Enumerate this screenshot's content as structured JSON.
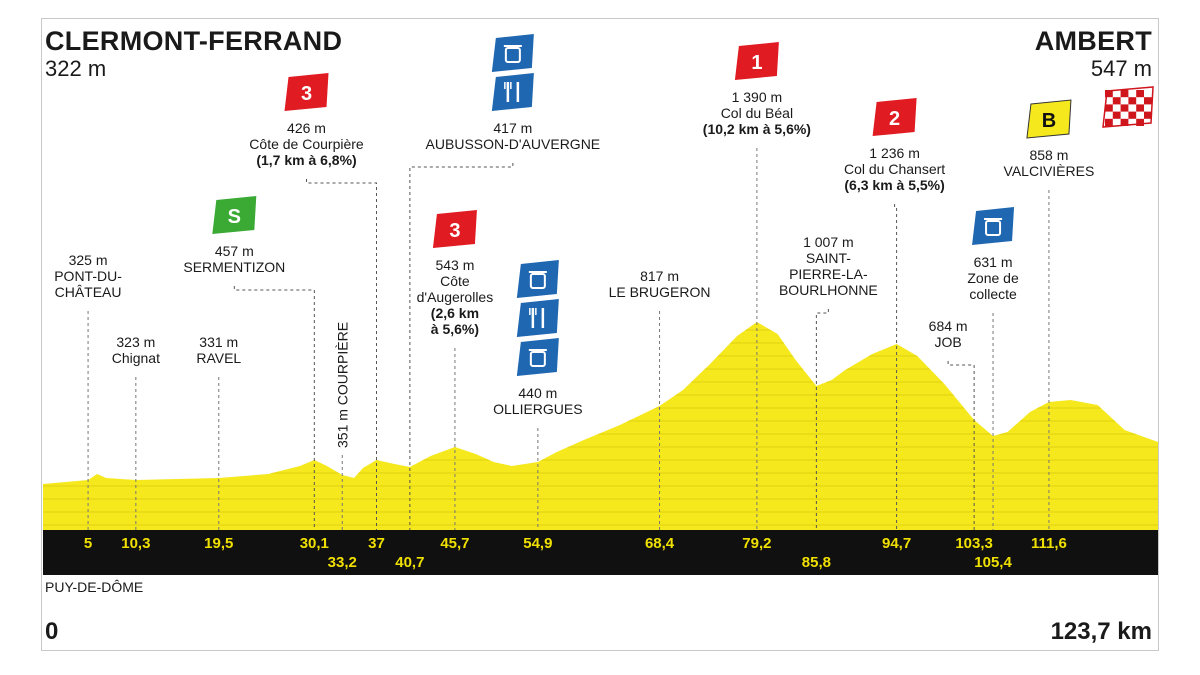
{
  "start": {
    "name": "CLERMONT-FERRAND",
    "altitude": "322 m"
  },
  "finish": {
    "name": "AMBERT",
    "altitude": "547 m"
  },
  "department": "PUY-DE-DÔME",
  "distance_start": "0",
  "distance_total": "123,7 km",
  "colors": {
    "profile": "#f5e81c",
    "km_bar": "#101010",
    "km_text": "#f0e000",
    "climb_red": "#e01b22",
    "sprint_green": "#3aaa35",
    "bonus_yellow": "#f5e81c",
    "feed_blue": "#1f67b1"
  },
  "waypoints": [
    {
      "km": "5",
      "lines": [
        "325 m",
        "PONT-DU-",
        "CHÂTEAU"
      ]
    },
    {
      "km": "10,3",
      "lines": [
        "323 m",
        "Chignat"
      ]
    },
    {
      "km": "19,5",
      "lines": [
        "331 m",
        "RAVEL"
      ]
    },
    {
      "km": "30,1",
      "lines": [
        "457 m",
        "SERMENTIZON"
      ],
      "badge": "sprint",
      "badge_text": "S"
    },
    {
      "km": "33,2",
      "lines": [
        "351 m COURPIÈRE"
      ],
      "vertical": true
    },
    {
      "km": "37",
      "lines": [
        "426 m",
        "Côte de Courpière",
        "(1,7 km à 6,8%)"
      ],
      "badge": "climb",
      "badge_text": "3"
    },
    {
      "km": "40,7",
      "lines": [
        "417 m",
        "AUBUSSON-D'AUVERGNE"
      ],
      "badge": "feed",
      "icons": [
        "bin-icon",
        "fork-knife-icon"
      ]
    },
    {
      "km": "45,7",
      "lines": [
        "543 m",
        "Côte",
        "d'Augerolles",
        "(2,6 km",
        "à 5,6%)"
      ],
      "badge": "climb",
      "badge_text": "3"
    },
    {
      "km": "54,9",
      "lines": [
        "440 m",
        "OLLIERGUES"
      ],
      "badge": "feed",
      "icons": [
        "bin-icon",
        "fork-knife-icon",
        "bin-icon"
      ]
    },
    {
      "km": "68,4",
      "lines": [
        "817 m",
        "LE BRUGERON"
      ]
    },
    {
      "km": "79,2",
      "lines": [
        "1 390 m",
        "Col du Béal",
        "(10,2 km à 5,6%)"
      ],
      "badge": "climb",
      "badge_text": "1"
    },
    {
      "km": "85,8",
      "lines": [
        "1 007 m",
        "SAINT-",
        "PIERRE-LA-",
        "BOURLHONNE"
      ]
    },
    {
      "km": "94,7",
      "lines": [
        "1 236 m",
        "Col du Chansert",
        "(6,3 km à 5,5%)"
      ],
      "badge": "climb",
      "badge_text": "2"
    },
    {
      "km": "103,3",
      "lines": [
        "684 m",
        "JOB"
      ]
    },
    {
      "km": "105,4",
      "lines": [
        "631 m",
        "Zone de",
        "collecte"
      ],
      "badge": "feed",
      "icons": [
        "bin-icon"
      ]
    },
    {
      "km": "111,6",
      "lines": [
        "858 m",
        "VALCIVIÈRES"
      ],
      "badge": "bonus",
      "badge_text": "B"
    }
  ]
}
